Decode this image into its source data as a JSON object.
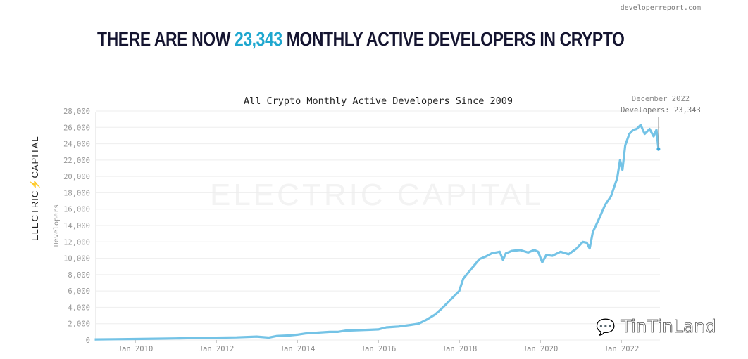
{
  "site": "developerreport.com",
  "headline": {
    "pre": "THERE ARE NOW ",
    "highlight": "23,343",
    "post": " MONTHLY ACTIVE DEVELOPERS IN CRYPTO"
  },
  "logo": {
    "left": "ELECTRIC",
    "right": "CAPITAL",
    "bolt": "⚡"
  },
  "watermark": "TinTinLand",
  "colors": {
    "line": "#74c3e6",
    "accent": "#1ea7cf",
    "grid": "#eeeeee"
  },
  "chart_data": {
    "type": "line",
    "title": "All Crypto Monthly Active Developers Since 2009",
    "xlabel": "",
    "ylabel": "Developers",
    "ylim": [
      0,
      28000
    ],
    "xlim": [
      2009.0,
      2022.95
    ],
    "grid": true,
    "yticks": [
      0,
      2000,
      4000,
      6000,
      8000,
      10000,
      12000,
      14000,
      16000,
      18000,
      20000,
      22000,
      24000,
      26000,
      28000
    ],
    "ytick_labels": [
      "0",
      "2,000",
      "4,000",
      "6,000",
      "8,000",
      "10,000",
      "12,000",
      "14,000",
      "16,000",
      "18,000",
      "20,000",
      "22,000",
      "24,000",
      "26,000",
      "28,000"
    ],
    "xticks": [
      2010,
      2012,
      2014,
      2016,
      2018,
      2020,
      2022
    ],
    "xtick_labels": [
      "Jan 2010",
      "Jan 2012",
      "Jan 2014",
      "Jan 2016",
      "Jan 2018",
      "Jan 2020",
      "Jan 2022"
    ],
    "annotation": {
      "line1": "December 2022",
      "line2": "Developers: 23,343",
      "x": 2022.92,
      "y": 23343
    },
    "watermark": "ELECTRIC CAPITAL",
    "series": [
      {
        "name": "Developers",
        "x": [
          2009.0,
          2009.5,
          2010.0,
          2010.5,
          2011.0,
          2011.5,
          2012.0,
          2012.5,
          2013.0,
          2013.3,
          2013.5,
          2013.8,
          2014.0,
          2014.2,
          2014.5,
          2014.8,
          2015.0,
          2015.2,
          2015.5,
          2015.8,
          2016.0,
          2016.2,
          2016.5,
          2016.8,
          2017.0,
          2017.2,
          2017.4,
          2017.6,
          2017.8,
          2018.0,
          2018.1,
          2018.3,
          2018.5,
          2018.65,
          2018.8,
          2019.0,
          2019.08,
          2019.15,
          2019.3,
          2019.5,
          2019.7,
          2019.85,
          2019.95,
          2020.05,
          2020.15,
          2020.3,
          2020.5,
          2020.7,
          2020.9,
          2021.05,
          2021.15,
          2021.22,
          2021.3,
          2021.45,
          2021.6,
          2021.75,
          2021.9,
          2021.97,
          2022.03,
          2022.1,
          2022.2,
          2022.3,
          2022.38,
          2022.48,
          2022.58,
          2022.7,
          2022.8,
          2022.87,
          2022.92
        ],
        "y": [
          80,
          100,
          130,
          160,
          200,
          240,
          290,
          330,
          420,
          300,
          500,
          560,
          650,
          800,
          900,
          1000,
          1000,
          1150,
          1200,
          1250,
          1300,
          1550,
          1650,
          1850,
          2000,
          2500,
          3100,
          4000,
          5000,
          6000,
          7500,
          8700,
          9900,
          10200,
          10600,
          10800,
          9800,
          10600,
          10900,
          11000,
          10700,
          11000,
          10800,
          9500,
          10400,
          10300,
          10800,
          10500,
          11200,
          12000,
          11900,
          11200,
          13200,
          14800,
          16500,
          17600,
          19800,
          22000,
          20800,
          23800,
          25200,
          25700,
          25800,
          26300,
          25200,
          25800,
          24900,
          25700,
          23343
        ]
      }
    ]
  }
}
